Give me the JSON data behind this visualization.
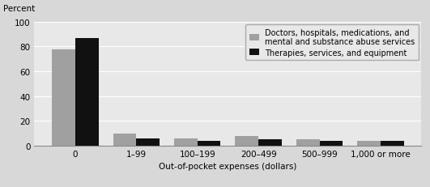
{
  "categories": [
    "0",
    "1–99",
    "100–199",
    "200–499",
    "500–999",
    "1,000 or more"
  ],
  "series1_values": [
    78,
    10,
    6,
    8,
    5,
    4
  ],
  "series2_values": [
    87,
    6,
    4,
    5,
    4,
    4
  ],
  "series1_color": "#a0a0a0",
  "series2_color": "#111111",
  "series1_label": "Doctors, hospitals, medications, and\nmental and substance abuse services",
  "series2_label": "Therapies, services, and equipment",
  "percent_label": "Percent",
  "xlabel": "Out-of-pocket expenses (dollars)",
  "ylim": [
    0,
    100
  ],
  "yticks": [
    0,
    20,
    40,
    60,
    80,
    100
  ],
  "plot_bg_color": "#e8e8e8",
  "fig_bg_color": "#d8d8d8",
  "axis_fontsize": 7.5,
  "legend_fontsize": 7,
  "bar_width": 0.38
}
